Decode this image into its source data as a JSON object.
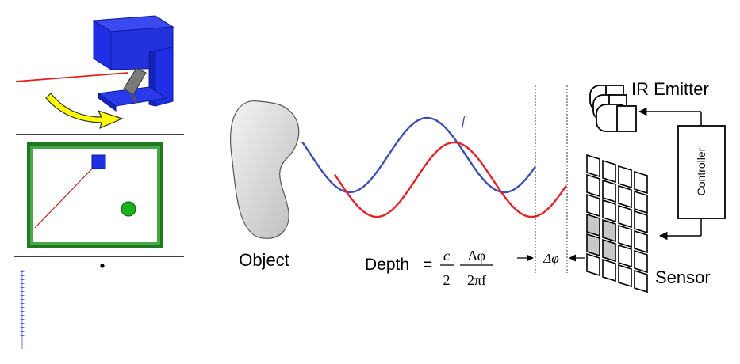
{
  "diagram": {
    "object_label": "Object",
    "ir_emitter_label": "IR Emitter",
    "controller_label": "Controller",
    "sensor_label": "Sensor",
    "frequency_symbol": "f",
    "phase_shift_symbol": "Δφ",
    "formula": {
      "lhs": "Depth",
      "equals": "=",
      "c": "c",
      "two": "2",
      "delta_phi": "Δφ",
      "two_pi_f": "2πf"
    }
  },
  "colors": {
    "emitted_wave": "#3c4fb0",
    "reflected_wave": "#e0242a",
    "device_blue": "#1f2fe6",
    "room_green": "#1f7a1f",
    "sensor_shaded": "#c8c8c8"
  }
}
